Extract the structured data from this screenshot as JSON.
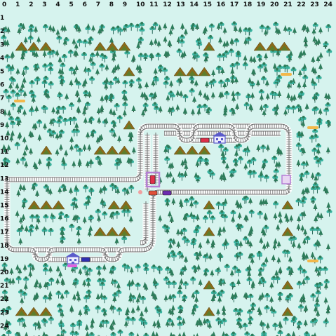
{
  "game": {
    "grid_cols": 25,
    "grid_rows": 25
  },
  "axes": {
    "col_labels": [
      "0",
      "1",
      "2",
      "3",
      "4",
      "5",
      "6",
      "7",
      "8",
      "9",
      "10",
      "11",
      "12",
      "13",
      "14",
      "15",
      "16",
      "17",
      "18",
      "19",
      "20",
      "21",
      "22",
      "23",
      "24"
    ],
    "row_labels": [
      "0",
      "1",
      "2",
      "3",
      "4",
      "5",
      "6",
      "7",
      "8",
      "9",
      "10",
      "11",
      "12",
      "13",
      "14",
      "15",
      "16",
      "17",
      "18",
      "19",
      "20",
      "21",
      "22",
      "23",
      "24"
    ]
  },
  "colors": {
    "background": "#d6f3ee",
    "tree_dark": "#2e7d5b",
    "tree_light": "#3ab3a0",
    "mountain": "#8a6a1a",
    "mountain_green": "#3b8d3b",
    "rail": "#9a9a9a",
    "rail_bed": "#ffffff",
    "station": "#5a5acb",
    "sign": "#f2b84b",
    "selection": "#b57fd6",
    "train_red": "#e0304a",
    "train_blue": "#3030b0",
    "train_purple": "#6d2ab0"
  },
  "entities": {
    "stations": [
      {
        "icon": "station-building-icon"
      },
      {
        "icon": "station-building-icon"
      }
    ],
    "trains": [
      {
        "icon": "train-car-icon",
        "color": "#e0304a"
      },
      {
        "icon": "train-car-icon",
        "color": "#6d2ab0"
      },
      {
        "icon": "train-car-icon",
        "color": "#e0304a"
      },
      {
        "icon": "train-car-icon",
        "color": "#3030b0"
      }
    ],
    "signs": [
      {
        "icon": "sign-marker-icon"
      },
      {
        "icon": "sign-marker-icon"
      },
      {
        "icon": "sign-marker-icon"
      },
      {
        "icon": "sign-marker-icon"
      }
    ],
    "selected_tile": {
      "icon": "selection-cursor-icon",
      "color": "#b57fd6"
    }
  }
}
